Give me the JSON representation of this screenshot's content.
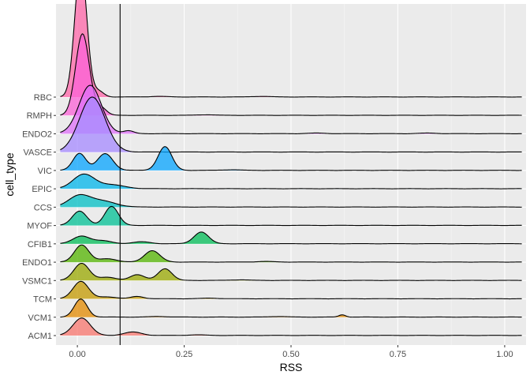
{
  "chart_data": {
    "type": "ridgeline",
    "xlabel": "RSS",
    "ylabel": "cell_type",
    "xlim": [
      -0.05,
      1.05
    ],
    "x_ticks": [
      0.0,
      0.25,
      0.5,
      0.75,
      1.0
    ],
    "x_tick_labels": [
      "0.00",
      "0.25",
      "0.50",
      "0.75",
      "1.00"
    ],
    "grid": true,
    "legend": "none",
    "reference_line_x": 0.1,
    "fill_opacity": 0.75,
    "series": [
      {
        "name": "ACM1",
        "color": "#F8766D",
        "scale": 1.0,
        "peaks": [
          [
            0.01,
            0.02,
            0.92
          ],
          [
            0.13,
            0.02,
            0.18
          ]
        ],
        "tail_bumps": [
          0.28
        ]
      },
      {
        "name": "VCM1",
        "color": "#E38900",
        "scale": 1.0,
        "peaks": [
          [
            0.008,
            0.015,
            0.95
          ],
          [
            0.62,
            0.008,
            0.12
          ]
        ],
        "tail_bumps": [
          0.19,
          0.47
        ]
      },
      {
        "name": "TCM",
        "color": "#C49A00",
        "scale": 1.0,
        "peaks": [
          [
            0.008,
            0.018,
            0.92
          ],
          [
            0.07,
            0.02,
            0.1
          ],
          [
            0.14,
            0.015,
            0.12
          ]
        ],
        "tail_bumps": [
          0.31
        ]
      },
      {
        "name": "VSMC1",
        "color": "#99A800",
        "scale": 1.0,
        "peaks": [
          [
            0.01,
            0.018,
            0.9
          ],
          [
            0.07,
            0.02,
            0.16
          ],
          [
            0.14,
            0.017,
            0.3
          ],
          [
            0.205,
            0.016,
            0.62
          ]
        ],
        "tail_bumps": [
          0.38
        ]
      },
      {
        "name": "ENDO1",
        "color": "#53B400",
        "scale": 1.0,
        "peaks": [
          [
            0.01,
            0.017,
            0.9
          ],
          [
            0.07,
            0.02,
            0.18
          ],
          [
            0.175,
            0.018,
            0.6
          ]
        ],
        "tail_bumps": [
          0.44
        ]
      },
      {
        "name": "CFIB1",
        "color": "#00BC56",
        "scale": 1.0,
        "peaks": [
          [
            0.01,
            0.02,
            0.4
          ],
          [
            0.06,
            0.02,
            0.15
          ],
          [
            0.15,
            0.02,
            0.1
          ],
          [
            0.29,
            0.017,
            0.62
          ]
        ],
        "tail_bumps": []
      },
      {
        "name": "MYOF",
        "color": "#00C094",
        "scale": 1.0,
        "peaks": [
          [
            0.005,
            0.017,
            0.75
          ],
          [
            0.08,
            0.016,
            1.0
          ]
        ],
        "tail_bumps": []
      },
      {
        "name": "CCS",
        "color": "#00BFC4",
        "scale": 1.0,
        "peaks": [
          [
            0.005,
            0.025,
            0.6
          ],
          [
            0.06,
            0.03,
            0.3
          ]
        ],
        "tail_bumps": []
      },
      {
        "name": "EPIC",
        "color": "#00B6EB",
        "scale": 1.0,
        "peaks": [
          [
            0.015,
            0.025,
            0.75
          ],
          [
            0.08,
            0.03,
            0.2
          ]
        ],
        "tail_bumps": []
      },
      {
        "name": "VIC",
        "color": "#06A4FF",
        "scale": 1.0,
        "peaks": [
          [
            0.005,
            0.015,
            0.9
          ],
          [
            0.065,
            0.018,
            0.88
          ],
          [
            0.205,
            0.016,
            1.25
          ]
        ],
        "tail_bumps": [
          0.36
        ]
      },
      {
        "name": "VASCE",
        "color": "#A58AFF",
        "scale": 1.0,
        "peaks": [
          [
            0.035,
            0.03,
            2.9
          ]
        ],
        "tail_bumps": []
      },
      {
        "name": "ENDO2",
        "color": "#DF70F8",
        "scale": 1.0,
        "peaks": [
          [
            0.03,
            0.026,
            2.55
          ],
          [
            0.12,
            0.012,
            0.15
          ]
        ],
        "tail_bumps": [
          0.56,
          0.82
        ]
      },
      {
        "name": "RMPH",
        "color": "#FB61D7",
        "scale": 1.0,
        "peaks": [
          [
            0.012,
            0.016,
            4.3
          ],
          [
            0.055,
            0.013,
            0.4
          ]
        ],
        "tail_bumps": [
          0.3
        ]
      },
      {
        "name": "RBC",
        "color": "#FF66A8",
        "scale": 1.0,
        "peaks": [
          [
            0.008,
            0.014,
            7.0
          ],
          [
            0.05,
            0.012,
            0.3
          ]
        ],
        "tail_bumps": [
          0.19,
          0.43
        ]
      }
    ]
  }
}
